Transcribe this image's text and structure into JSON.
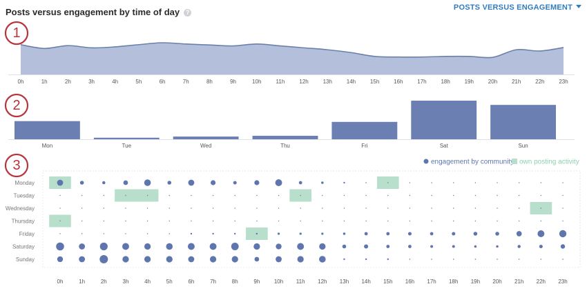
{
  "header": {
    "title": "Posts versus engagement by time of day",
    "help_icon": "question-circle-icon",
    "dropdown_label": "POSTS VERSUS ENGAGEMENT"
  },
  "markers": [
    "1",
    "2",
    "3"
  ],
  "colors": {
    "accent_blue": "#2f7cc0",
    "area_fill": "#b3bfdb",
    "area_line": "#6b80a8",
    "bar": "#6b7fb2",
    "dot": "#5f75ad",
    "own_activity": "#b7dfcc",
    "marker_red": "#b8343a"
  },
  "legend": {
    "engagement_label": "engagement by community",
    "own_label": "own posting activity"
  },
  "chart_data": [
    {
      "type": "area",
      "x": [
        "0h",
        "1h",
        "2h",
        "3h",
        "4h",
        "5h",
        "6h",
        "7h",
        "8h",
        "9h",
        "10h",
        "11h",
        "12h",
        "13h",
        "14h",
        "15h",
        "16h",
        "17h",
        "18h",
        "19h",
        "20h",
        "21h",
        "22h",
        "23h"
      ],
      "values": [
        0.94,
        0.82,
        0.91,
        0.84,
        0.87,
        0.94,
        1.0,
        0.96,
        0.93,
        0.9,
        0.96,
        0.9,
        0.84,
        0.78,
        0.69,
        0.57,
        0.55,
        0.55,
        0.57,
        0.57,
        0.54,
        0.78,
        0.74,
        0.85
      ],
      "xlabel": "",
      "ylabel": ""
    },
    {
      "type": "bar",
      "categories": [
        "Mon",
        "Tue",
        "Wed",
        "Thu",
        "Fri",
        "Sat",
        "Sun"
      ],
      "values": [
        0.47,
        0.04,
        0.07,
        0.09,
        0.45,
        1.0,
        0.89
      ],
      "xlabel": "",
      "ylabel": ""
    },
    {
      "type": "scatter",
      "rows": [
        "Monday",
        "Tuesday",
        "Wednesday",
        "Thursday",
        "Friday",
        "Saturday",
        "Sunday"
      ],
      "columns": [
        "0h",
        "1h",
        "2h",
        "3h",
        "4h",
        "5h",
        "6h",
        "7h",
        "8h",
        "9h",
        "10h",
        "11h",
        "12h",
        "13h",
        "14h",
        "15h",
        "16h",
        "17h",
        "18h",
        "19h",
        "20h",
        "21h",
        "22h",
        "23h"
      ],
      "engagement": [
        [
          0.55,
          0.35,
          0.28,
          0.42,
          0.6,
          0.35,
          0.55,
          0.45,
          0.32,
          0.45,
          0.62,
          0.3,
          0.22,
          0.15,
          0.1,
          0.08,
          0.08,
          0.08,
          0.08,
          0.06,
          0.06,
          0.06,
          0.06,
          0.06
        ],
        [
          0.08,
          0.08,
          0.08,
          0.08,
          0.08,
          0.08,
          0.08,
          0.08,
          0.08,
          0.08,
          0.08,
          0.08,
          0.08,
          0.08,
          0.08,
          0.06,
          0.06,
          0.06,
          0.06,
          0.06,
          0.06,
          0.06,
          0.06,
          0.06
        ],
        [
          0.08,
          0.08,
          0.08,
          0.08,
          0.08,
          0.08,
          0.08,
          0.08,
          0.08,
          0.08,
          0.08,
          0.08,
          0.08,
          0.08,
          0.08,
          0.06,
          0.06,
          0.06,
          0.06,
          0.06,
          0.06,
          0.06,
          0.06,
          0.06
        ],
        [
          0.08,
          0.08,
          0.08,
          0.08,
          0.08,
          0.08,
          0.08,
          0.08,
          0.08,
          0.08,
          0.08,
          0.08,
          0.08,
          0.08,
          0.08,
          0.06,
          0.06,
          0.06,
          0.06,
          0.06,
          0.06,
          0.06,
          0.06,
          0.06
        ],
        [
          0.08,
          0.08,
          0.08,
          0.08,
          0.08,
          0.08,
          0.15,
          0.15,
          0.15,
          0.15,
          0.2,
          0.2,
          0.2,
          0.22,
          0.3,
          0.3,
          0.32,
          0.3,
          0.32,
          0.35,
          0.35,
          0.48,
          0.62,
          0.65
        ],
        [
          0.72,
          0.55,
          0.7,
          0.62,
          0.58,
          0.6,
          0.62,
          0.62,
          0.68,
          0.58,
          0.52,
          0.62,
          0.58,
          0.35,
          0.38,
          0.3,
          0.3,
          0.25,
          0.25,
          0.22,
          0.22,
          0.28,
          0.32,
          0.4
        ],
        [
          0.52,
          0.55,
          0.75,
          0.58,
          0.58,
          0.58,
          0.55,
          0.58,
          0.58,
          0.42,
          0.55,
          0.58,
          0.6,
          0.15,
          0.15,
          0.15,
          0.1,
          0.1,
          0.1,
          0.1,
          0.1,
          0.1,
          0.1,
          0.1
        ]
      ],
      "own_activity": [
        {
          "row": 0,
          "start": 0,
          "span": 1
        },
        {
          "row": 0,
          "start": 15,
          "span": 1
        },
        {
          "row": 1,
          "start": 3,
          "span": 2
        },
        {
          "row": 1,
          "start": 11,
          "span": 1
        },
        {
          "row": 2,
          "start": 22,
          "span": 1
        },
        {
          "row": 3,
          "start": 0,
          "span": 1
        },
        {
          "row": 4,
          "start": 9,
          "span": 1
        }
      ]
    }
  ]
}
